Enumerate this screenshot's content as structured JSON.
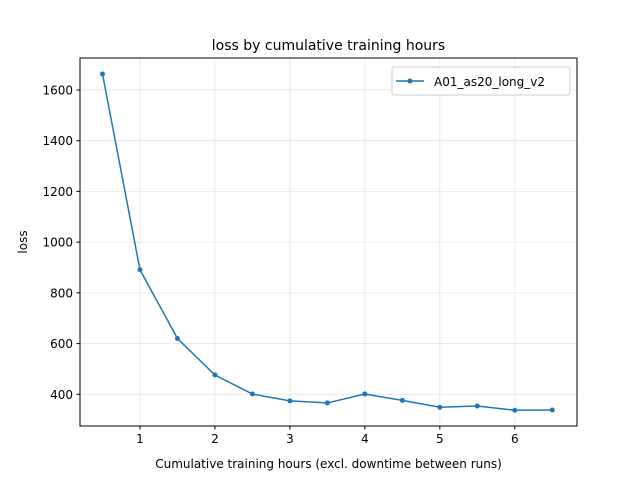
{
  "chart_data": {
    "type": "line",
    "title": "loss by cumulative training hours",
    "xlabel": "Cumulative training hours (excl. downtime between runs)",
    "ylabel": "loss",
    "xlim": [
      0.2,
      6.83
    ],
    "ylim": [
      275,
      1726
    ],
    "xticks": [
      1,
      2,
      3,
      4,
      5,
      6
    ],
    "yticks": [
      400,
      600,
      800,
      1000,
      1200,
      1400,
      1600
    ],
    "grid": true,
    "legend": "top-right",
    "series": [
      {
        "name": "A01_as20_long_v2",
        "color": "#1f77b4",
        "marker": "circle",
        "x": [
          0.5,
          1,
          1.5,
          2,
          2.5,
          3,
          3.5,
          4,
          4.5,
          5,
          5.5,
          6,
          6.5
        ],
        "y": [
          1663,
          891,
          620,
          476,
          401,
          374,
          366,
          401,
          376,
          349,
          354,
          337,
          338
        ]
      }
    ]
  }
}
